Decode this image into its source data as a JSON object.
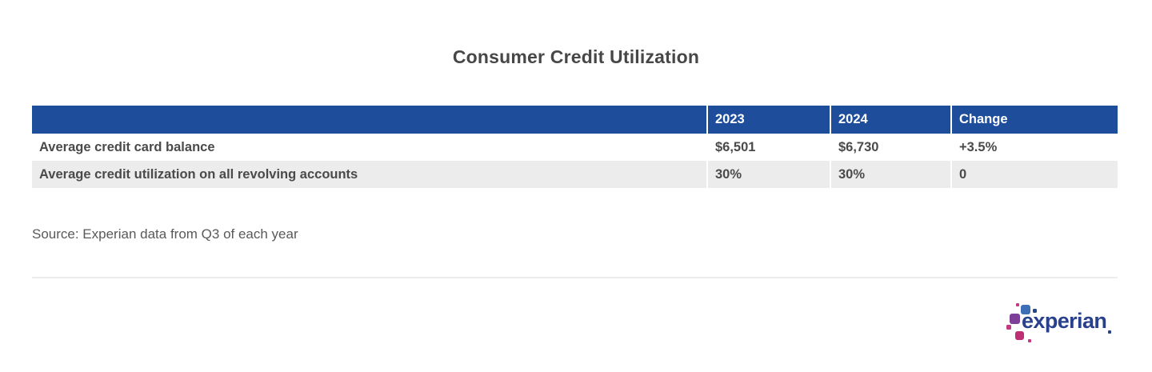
{
  "page": {
    "title": "Consumer Credit Utilization",
    "source_note": "Source: Experian data from Q3 of each year"
  },
  "table": {
    "columns": [
      "",
      "2023",
      "2024",
      "Change"
    ],
    "rows": [
      {
        "label": "Average credit card balance",
        "values": [
          "$6,501",
          "$6,730",
          "+3.5%"
        ]
      },
      {
        "label": "Average credit utilization on all revolving accounts",
        "values": [
          "30%",
          "30%",
          "0"
        ]
      }
    ]
  },
  "logo": {
    "wordmark": "experian"
  },
  "colors": {
    "header_bg": "#1E4E9B",
    "alt_row_bg": "#ECECEC",
    "body_text": "#4A4A4A",
    "logo_navy": "#29418C",
    "logo_blue": "#3E6EB6",
    "logo_purple": "#7D3F98",
    "logo_magenta": "#C13A82",
    "logo_crimson": "#BE2E74"
  },
  "chart_data": {
    "type": "table",
    "title": "Consumer Credit Utilization",
    "columns": [
      "",
      "2023",
      "2024",
      "Change"
    ],
    "rows": [
      [
        "Average credit card balance",
        "$6,501",
        "$6,730",
        "+3.5%"
      ],
      [
        "Average credit utilization on all revolving accounts",
        "30%",
        "30%",
        "0"
      ]
    ],
    "source": "Source: Experian data from Q3 of each year"
  }
}
